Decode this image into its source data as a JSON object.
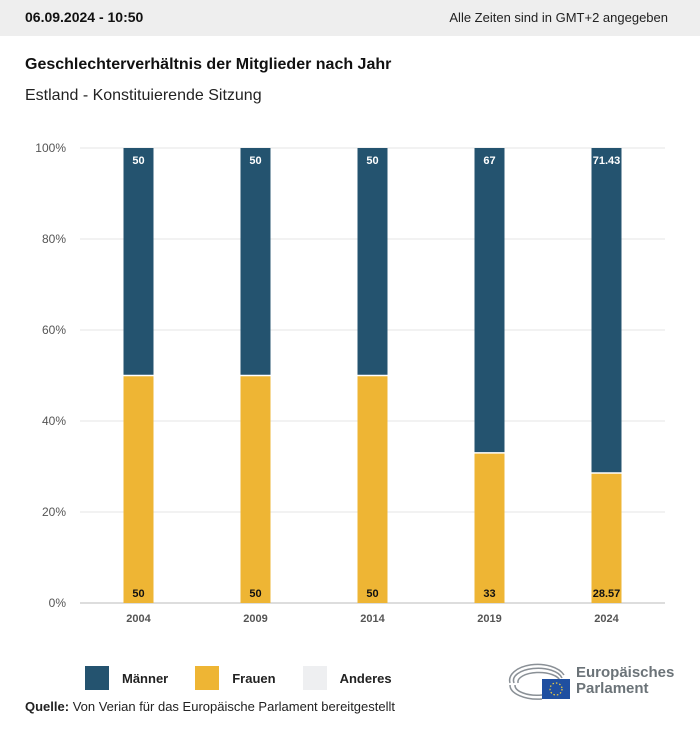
{
  "header": {
    "date": "06.09.2024 - 10:50",
    "timezone": "Alle Zeiten sind in GMT+2 angegeben"
  },
  "title": "Geschlechterverhältnis der Mitglieder nach Jahr",
  "subtitle": "Estland - Konstituierende Sitzung",
  "colors": {
    "maenner": "#24536f",
    "frauen": "#eeb534",
    "anderes": "#eeeff1"
  },
  "chart_data": {
    "type": "bar",
    "stacked": true,
    "categories": [
      "2004",
      "2009",
      "2014",
      "2019",
      "2024"
    ],
    "series": [
      {
        "name": "Männer",
        "values": [
          50,
          50,
          50,
          67,
          71.43
        ],
        "labels": [
          "50",
          "50",
          "50",
          "67",
          "71.43"
        ]
      },
      {
        "name": "Frauen",
        "values": [
          50,
          50,
          50,
          33,
          28.57
        ],
        "labels": [
          "50",
          "50",
          "50",
          "33",
          "28.57"
        ]
      },
      {
        "name": "Anderes",
        "values": [
          0,
          0,
          0,
          0,
          0
        ]
      }
    ],
    "yticks": [
      "0%",
      "20%",
      "40%",
      "60%",
      "80%",
      "100%"
    ],
    "ylim": [
      0,
      100
    ],
    "grid": true,
    "legend": "bottom-left"
  },
  "legend": [
    "Männer",
    "Frauen",
    "Anderes"
  ],
  "source": {
    "label": "Quelle:",
    "text": " Von Verian für das Europäische Parlament bereitgestellt"
  },
  "logo": {
    "line1": "Europäisches",
    "line2": "Parlament"
  }
}
